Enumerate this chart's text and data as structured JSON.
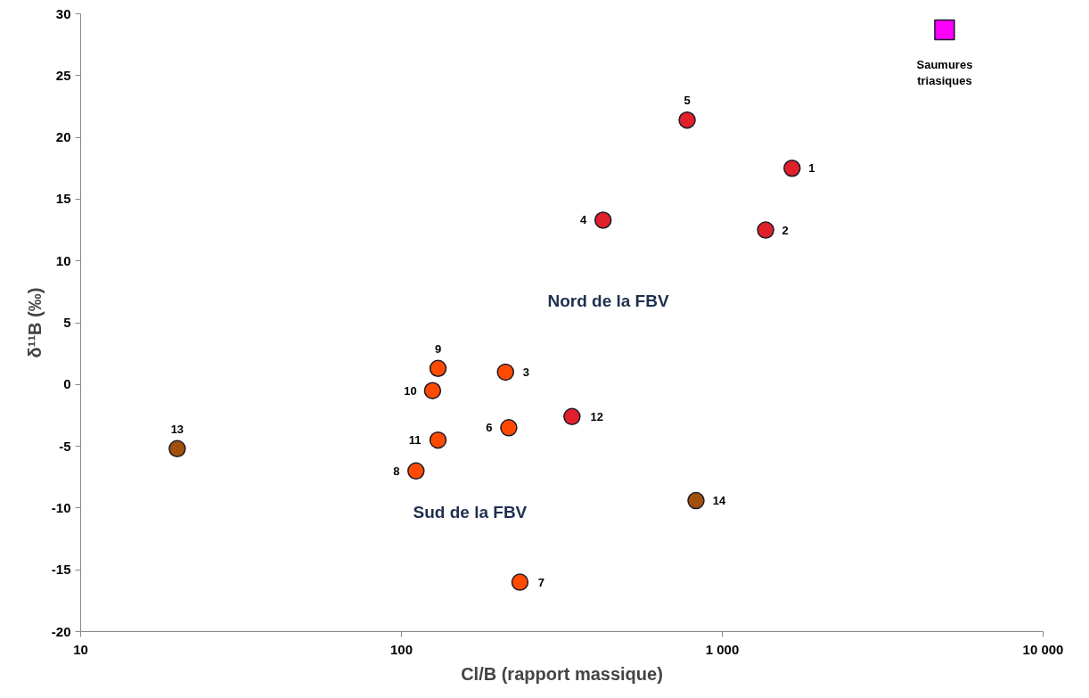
{
  "chart_data": {
    "type": "scatter",
    "xlabel": "Cl/B (rapport massique)",
    "ylabel": "δ¹¹B (‰)",
    "log": "x",
    "xlim": [
      10,
      10000
    ],
    "xticks": [
      {
        "value": 10,
        "label": "10"
      },
      {
        "value": 100,
        "label": "100"
      },
      {
        "value": 1000,
        "label": "1 000"
      },
      {
        "value": 10000,
        "label": "10 000"
      }
    ],
    "ylim": [
      -20,
      30
    ],
    "yticks": [
      -20,
      -15,
      -10,
      -5,
      0,
      5,
      10,
      15,
      20,
      25,
      30
    ],
    "grid": false,
    "marker": "circle",
    "series": [
      {
        "color": "#e0202a",
        "x": [
          1650,
          1365,
          425,
          777,
          340
        ],
        "values": [
          17.5,
          12.5,
          13.3,
          21.4,
          -2.6
        ]
      },
      {
        "color": "#ff4a00",
        "x": [
          211,
          216,
          234,
          111,
          130,
          125,
          130
        ],
        "values": [
          1,
          -3.5,
          -16,
          -7,
          1.3,
          -0.5,
          -4.5
        ]
      },
      {
        "color": "#a0500a",
        "x": [
          20,
          828
        ],
        "values": [
          -5.2,
          -9.4
        ]
      },
      {
        "color": "#ff00ff",
        "marker": "square",
        "x": [
          4930
        ],
        "values": [
          28.7
        ]
      }
    ],
    "annotations": [
      {
        "text": "1",
        "x": 1650,
        "y": 17.5
      },
      {
        "text": "2",
        "x": 1365,
        "y": 12.5
      },
      {
        "text": "3",
        "x": 211,
        "y": 1
      },
      {
        "text": "4",
        "x": 425,
        "y": 13.3
      },
      {
        "text": "5",
        "x": 777,
        "y": 21.4
      },
      {
        "text": "6",
        "x": 216,
        "y": -3.5
      },
      {
        "text": "7",
        "x": 234,
        "y": -16
      },
      {
        "text": "8",
        "x": 111,
        "y": -7
      },
      {
        "text": "9",
        "x": 130,
        "y": 1.3
      },
      {
        "text": "10",
        "x": 125,
        "y": -0.5
      },
      {
        "text": "11",
        "x": 130,
        "y": -4.5
      },
      {
        "text": "12",
        "x": 340,
        "y": -2.6
      },
      {
        "text": "13",
        "x": 20,
        "y": -5.2
      },
      {
        "text": "14",
        "x": 828,
        "y": -9.4
      },
      {
        "text": "Saumures\ntriasiques",
        "x": 4930,
        "y": 28.7
      },
      "Nord de la FBV",
      "Sud de la FBV"
    ]
  }
}
